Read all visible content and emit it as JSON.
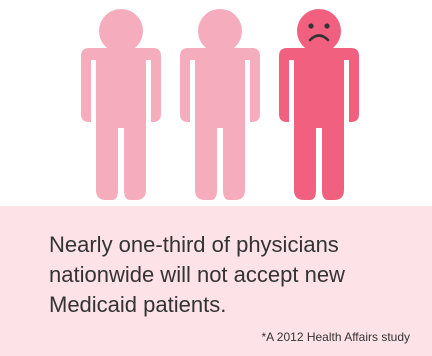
{
  "figures": [
    {
      "name": "person-1",
      "mood": "neutral",
      "color": "#f5adbd"
    },
    {
      "name": "person-2",
      "mood": "neutral",
      "color": "#f5adbd"
    },
    {
      "name": "person-3",
      "mood": "sad",
      "color": "#f2607f"
    }
  ],
  "caption": {
    "text": "Nearly one-third of physicians nationwide will not accept new Medicaid patients.",
    "source": "*A 2012 Health Affairs study"
  },
  "colors": {
    "figure_light": "#f5adbd",
    "figure_highlight": "#f2607f",
    "face": "#333333",
    "caption_background": "#fde3e8"
  }
}
